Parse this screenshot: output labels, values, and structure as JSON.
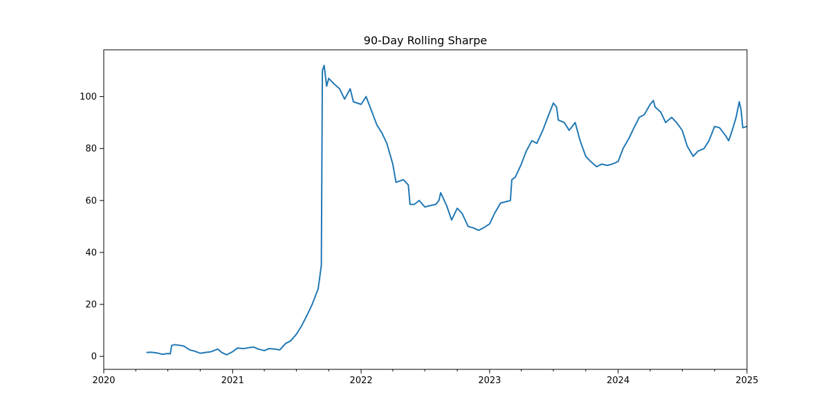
{
  "chart_data": {
    "type": "line",
    "title": "90-Day Rolling Sharpe",
    "xlabel": "",
    "ylabel": "",
    "xlim": [
      "2020-01-01",
      "2025-01-01"
    ],
    "ylim": [
      -5,
      118
    ],
    "x_ticks": [
      "2020",
      "2021",
      "2022",
      "2023",
      "2024",
      "2025"
    ],
    "y_ticks": [
      0,
      20,
      40,
      60,
      80,
      100
    ],
    "grid": false,
    "legend": "none",
    "colors": {
      "line": "#1f77b4",
      "axes": "#000000",
      "background": "#ffffff"
    },
    "series": [
      {
        "points": [
          [
            "2020-05-01",
            1.5
          ],
          [
            "2020-05-15",
            1.6
          ],
          [
            "2020-06-01",
            1.3
          ],
          [
            "2020-06-15",
            0.8
          ],
          [
            "2020-07-01",
            1.1
          ],
          [
            "2020-07-08",
            1.0
          ],
          [
            "2020-07-12",
            4.2
          ],
          [
            "2020-07-20",
            4.5
          ],
          [
            "2020-08-01",
            4.3
          ],
          [
            "2020-08-15",
            4.0
          ],
          [
            "2020-09-01",
            2.5
          ],
          [
            "2020-09-15",
            2.0
          ],
          [
            "2020-10-01",
            1.2
          ],
          [
            "2020-10-15",
            1.5
          ],
          [
            "2020-11-01",
            1.8
          ],
          [
            "2020-11-20",
            2.8
          ],
          [
            "2020-12-01",
            1.5
          ],
          [
            "2020-12-15",
            0.6
          ],
          [
            "2021-01-01",
            1.8
          ],
          [
            "2021-01-15",
            3.2
          ],
          [
            "2021-02-01",
            3.0
          ],
          [
            "2021-02-15",
            3.3
          ],
          [
            "2021-03-01",
            3.6
          ],
          [
            "2021-03-15",
            2.8
          ],
          [
            "2021-04-01",
            2.2
          ],
          [
            "2021-04-15",
            3.0
          ],
          [
            "2021-05-01",
            2.8
          ],
          [
            "2021-05-15",
            2.5
          ],
          [
            "2021-06-01",
            5.0
          ],
          [
            "2021-06-15",
            6.0
          ],
          [
            "2021-07-01",
            8.5
          ],
          [
            "2021-07-15",
            11.5
          ],
          [
            "2021-08-01",
            16.0
          ],
          [
            "2021-08-15",
            20.0
          ],
          [
            "2021-09-01",
            26.0
          ],
          [
            "2021-09-10",
            35.0
          ],
          [
            "2021-09-13",
            110.0
          ],
          [
            "2021-09-18",
            112.0
          ],
          [
            "2021-09-25",
            104.0
          ],
          [
            "2021-10-01",
            107.0
          ],
          [
            "2021-10-15",
            105.0
          ],
          [
            "2021-11-01",
            103.0
          ],
          [
            "2021-11-15",
            99.0
          ],
          [
            "2021-12-01",
            103.0
          ],
          [
            "2021-12-10",
            98.0
          ],
          [
            "2022-01-01",
            97.0
          ],
          [
            "2022-01-15",
            100.0
          ],
          [
            "2022-02-01",
            94.0
          ],
          [
            "2022-02-15",
            89.0
          ],
          [
            "2022-03-01",
            86.0
          ],
          [
            "2022-03-15",
            82.0
          ],
          [
            "2022-04-01",
            74.0
          ],
          [
            "2022-04-10",
            67.0
          ],
          [
            "2022-05-01",
            68.0
          ],
          [
            "2022-05-15",
            66.0
          ],
          [
            "2022-05-20",
            58.5
          ],
          [
            "2022-06-01",
            58.5
          ],
          [
            "2022-06-15",
            60.0
          ],
          [
            "2022-07-01",
            57.5
          ],
          [
            "2022-07-15",
            58.0
          ],
          [
            "2022-08-01",
            58.5
          ],
          [
            "2022-08-10",
            60.0
          ],
          [
            "2022-08-15",
            63.0
          ],
          [
            "2022-09-01",
            58.0
          ],
          [
            "2022-09-15",
            52.5
          ],
          [
            "2022-10-01",
            57.0
          ],
          [
            "2022-10-15",
            55.0
          ],
          [
            "2022-11-01",
            50.0
          ],
          [
            "2022-11-15",
            49.5
          ],
          [
            "2022-12-01",
            48.5
          ],
          [
            "2022-12-15",
            49.5
          ],
          [
            "2023-01-01",
            51.0
          ],
          [
            "2023-01-15",
            55.0
          ],
          [
            "2023-02-01",
            59.0
          ],
          [
            "2023-02-15",
            59.5
          ],
          [
            "2023-03-01",
            60.0
          ],
          [
            "2023-03-05",
            68.0
          ],
          [
            "2023-03-15",
            69.0
          ],
          [
            "2023-04-01",
            74.0
          ],
          [
            "2023-04-15",
            79.0
          ],
          [
            "2023-05-01",
            83.0
          ],
          [
            "2023-05-15",
            82.0
          ],
          [
            "2023-06-01",
            87.0
          ],
          [
            "2023-06-15",
            92.0
          ],
          [
            "2023-07-01",
            97.5
          ],
          [
            "2023-07-10",
            96.0
          ],
          [
            "2023-07-15",
            91.0
          ],
          [
            "2023-08-01",
            90.0
          ],
          [
            "2023-08-15",
            87.0
          ],
          [
            "2023-09-01",
            90.0
          ],
          [
            "2023-09-15",
            83.0
          ],
          [
            "2023-10-01",
            77.0
          ],
          [
            "2023-10-15",
            75.0
          ],
          [
            "2023-11-01",
            73.0
          ],
          [
            "2023-11-15",
            74.0
          ],
          [
            "2023-12-01",
            73.5
          ],
          [
            "2023-12-15",
            74.0
          ],
          [
            "2024-01-01",
            75.0
          ],
          [
            "2024-01-15",
            80.0
          ],
          [
            "2024-02-01",
            84.0
          ],
          [
            "2024-02-15",
            88.0
          ],
          [
            "2024-03-01",
            92.0
          ],
          [
            "2024-03-15",
            93.0
          ],
          [
            "2024-04-01",
            97.0
          ],
          [
            "2024-04-10",
            98.5
          ],
          [
            "2024-04-15",
            96.0
          ],
          [
            "2024-05-01",
            94.0
          ],
          [
            "2024-05-15",
            90.0
          ],
          [
            "2024-06-01",
            92.0
          ],
          [
            "2024-06-15",
            90.0
          ],
          [
            "2024-07-01",
            87.0
          ],
          [
            "2024-07-15",
            81.0
          ],
          [
            "2024-08-01",
            77.0
          ],
          [
            "2024-08-15",
            79.0
          ],
          [
            "2024-09-01",
            80.0
          ],
          [
            "2024-09-15",
            83.0
          ],
          [
            "2024-10-01",
            88.5
          ],
          [
            "2024-10-15",
            88.0
          ],
          [
            "2024-11-01",
            85.0
          ],
          [
            "2024-11-10",
            83.0
          ],
          [
            "2024-11-20",
            87.0
          ],
          [
            "2024-12-01",
            92.0
          ],
          [
            "2024-12-10",
            98.0
          ],
          [
            "2024-12-15",
            95.0
          ],
          [
            "2024-12-20",
            88.0
          ],
          [
            "2025-01-01",
            88.5
          ]
        ]
      }
    ]
  }
}
